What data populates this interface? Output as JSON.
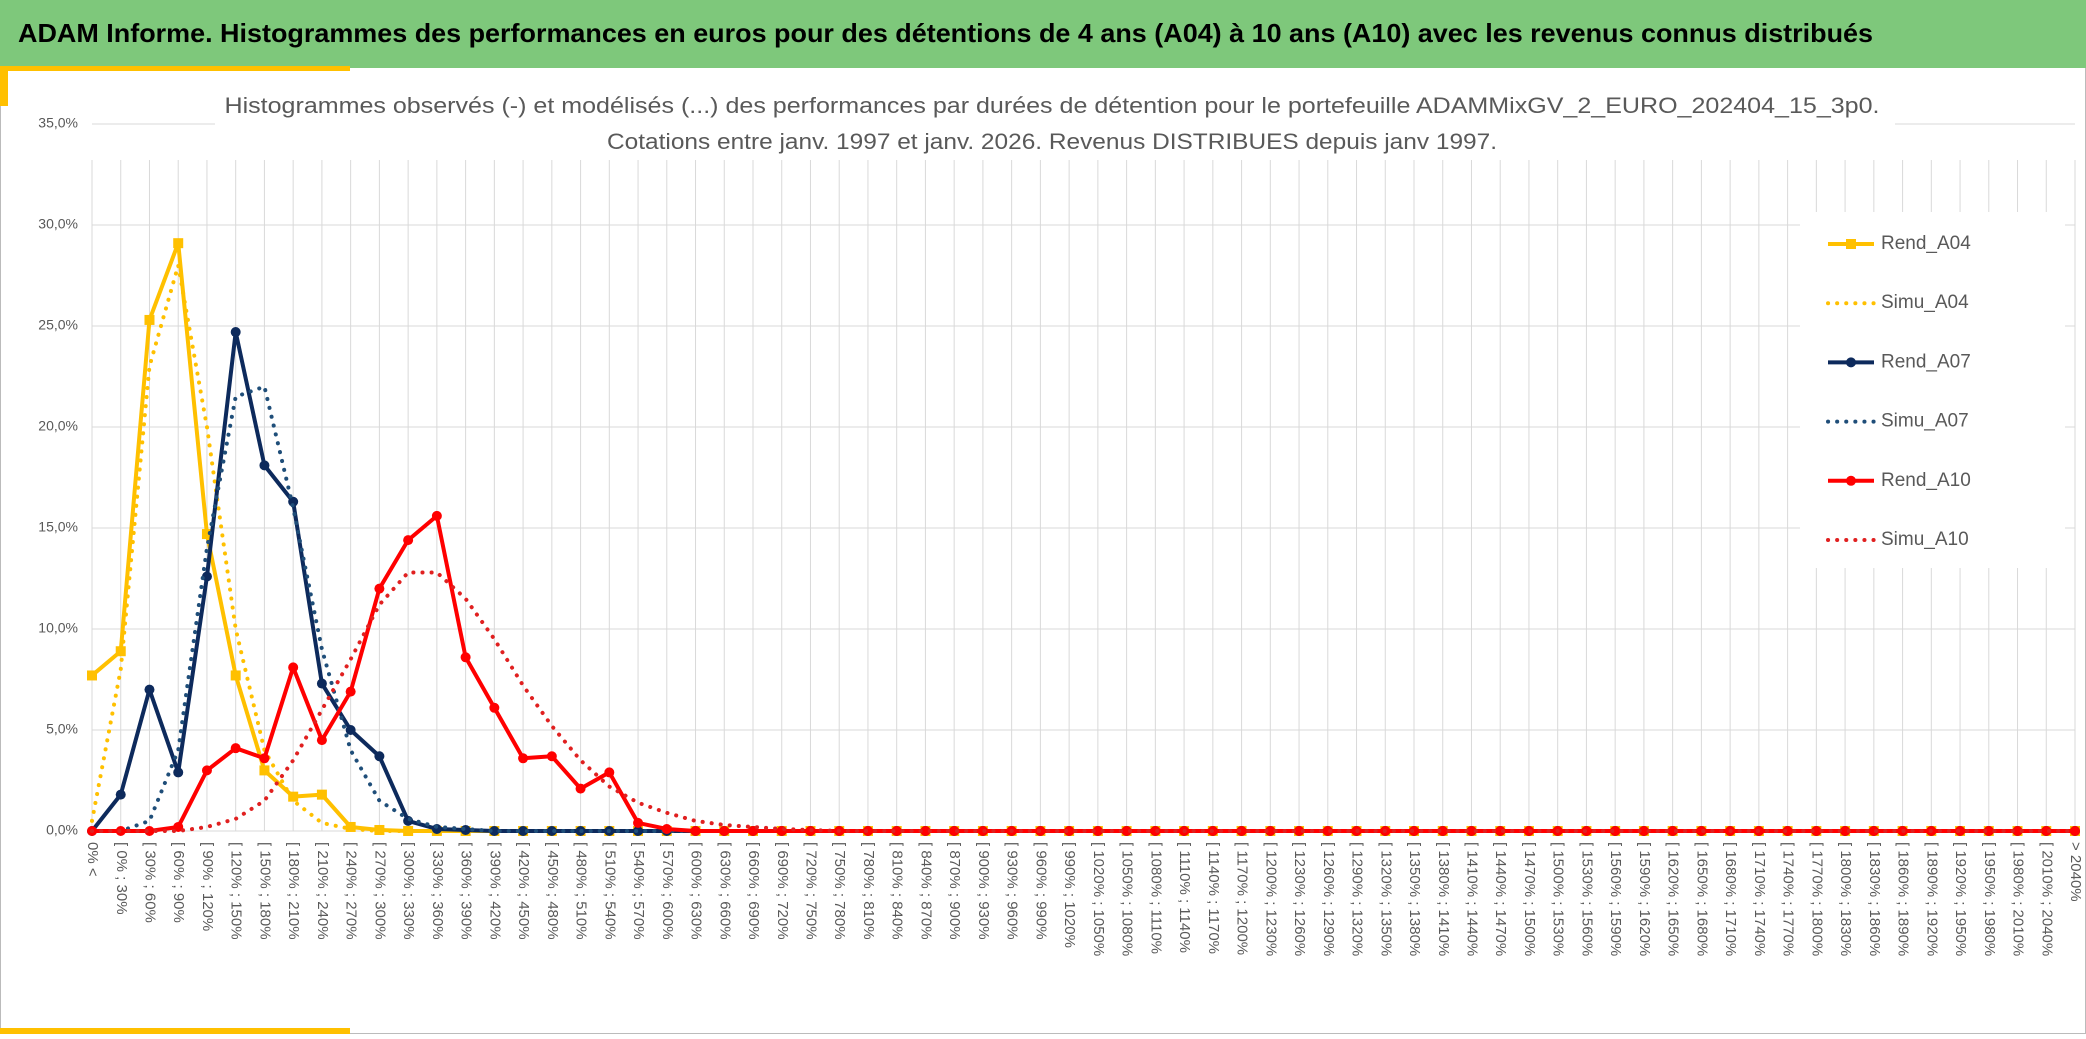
{
  "header": {
    "title": "ADAM Informe. Histogrammes des performances en euros pour des détentions de 4 ans (A04) à 10 ans (A10) avec les revenus connus distribués"
  },
  "chart_data": {
    "type": "line",
    "title": [
      "Histogrammes observés (-) et modélisés (...) des performances par durées de détention pour le portefeuille ADAMMixGV_2_EURO_202404_15_3p0.",
      "Cotations entre janv. 1997 et janv. 2026. Revenus DISTRIBUES depuis janv 1997."
    ],
    "categories": [
      "0% <",
      "[ 0% ; 30%",
      "[ 30% ; 60%",
      "[ 60% ; 90%",
      "[ 90% ; 120%",
      "[ 120% ; 150%",
      "[ 150% ; 180%",
      "[ 180% ; 210%",
      "[ 210% ; 240%",
      "[ 240% ; 270%",
      "[ 270% ; 300%",
      "[ 300% ; 330%",
      "[ 330% ; 360%",
      "[ 360% ; 390%",
      "[ 390% ; 420%",
      "[ 420% ; 450%",
      "[ 450% ; 480%",
      "[ 480% ; 510%",
      "[ 510% ; 540%",
      "[ 540% ; 570%",
      "[ 570% ; 600%",
      "[ 600% ; 630%",
      "[ 630% ; 660%",
      "[ 660% ; 690%",
      "[ 690% ; 720%",
      "[ 720% ; 750%",
      "[ 750% ; 780%",
      "[ 780% ; 810%",
      "[ 810% ; 840%",
      "[ 840% ; 870%",
      "[ 870% ; 900%",
      "[ 900% ; 930%",
      "[ 930% ; 960%",
      "[ 960% ; 990%",
      "[ 990% ; 1020%",
      "[ 1020% ; 1050%",
      "[ 1050% ; 1080%",
      "[ 1080% ; 1110%",
      "[ 1110% ; 1140%",
      "[ 1140% ; 1170%",
      "[ 1170% ; 1200%",
      "[ 1200% ; 1230%",
      "[ 1230% ; 1260%",
      "[ 1260% ; 1290%",
      "[ 1290% ; 1320%",
      "[ 1320% ; 1350%",
      "[ 1350% ; 1380%",
      "[ 1380% ; 1410%",
      "[ 1410% ; 1440%",
      "[ 1440% ; 1470%",
      "[ 1470% ; 1500%",
      "[ 1500% ; 1530%",
      "[ 1530% ; 1560%",
      "[ 1560% ; 1590%",
      "[ 1590% ; 1620%",
      "[ 1620% ; 1650%",
      "[ 1650% ; 1680%",
      "[ 1680% ; 1710%",
      "[ 1710% ; 1740%",
      "[ 1740% ; 1770%",
      "[ 1770% ; 1800%",
      "[ 1800% ; 1830%",
      "[ 1830% ; 1860%",
      "[ 1860% ; 1890%",
      "[ 1890% ; 1920%",
      "[ 1920% ; 1950%",
      "[ 1950% ; 1980%",
      "[ 1980% ; 2010%",
      "[ 2010% ; 2040%",
      "> 2040%"
    ],
    "series": [
      {
        "name": "Rend_A04",
        "color": "#ffc000",
        "line_style": "solid",
        "marker": "square",
        "values": [
          7.7,
          8.9,
          25.3,
          29.1,
          14.7,
          7.7,
          3.0,
          1.7,
          1.8,
          0.2,
          0.05,
          0,
          0,
          0,
          0,
          0,
          0,
          0,
          0,
          0,
          0,
          0,
          0,
          0,
          0,
          0,
          0,
          0,
          0,
          0,
          0,
          0,
          0,
          0,
          0,
          0,
          0,
          0,
          0,
          0,
          0,
          0,
          0,
          0,
          0,
          0,
          0,
          0,
          0,
          0,
          0,
          0,
          0,
          0,
          0,
          0,
          0,
          0,
          0,
          0,
          0,
          0,
          0,
          0,
          0,
          0,
          0,
          0,
          0,
          0
        ]
      },
      {
        "name": "Simu_A04",
        "color": "#ffc000",
        "line_style": "dotted",
        "marker": "none",
        "values": [
          0.5,
          8,
          23,
          28,
          20,
          10,
          4,
          1.5,
          0.4,
          0.1,
          0,
          0,
          0,
          0,
          0,
          0,
          0,
          0,
          0,
          0,
          0,
          0,
          0,
          0,
          0,
          0,
          0,
          0,
          0,
          0,
          0,
          0,
          0,
          0,
          0,
          0,
          0,
          0,
          0,
          0,
          0,
          0,
          0,
          0,
          0,
          0,
          0,
          0,
          0,
          0,
          0,
          0,
          0,
          0,
          0,
          0,
          0,
          0,
          0,
          0,
          0,
          0,
          0,
          0,
          0,
          0,
          0,
          0,
          0,
          0
        ]
      },
      {
        "name": "Rend_A07",
        "color": "#0d2a5c",
        "line_style": "solid",
        "marker": "circle",
        "values": [
          0,
          1.8,
          7.0,
          2.9,
          12.6,
          24.7,
          18.1,
          16.3,
          7.3,
          5.0,
          3.7,
          0.5,
          0.1,
          0.05,
          0,
          0,
          0,
          0,
          0,
          0,
          0,
          0,
          0,
          0,
          0,
          0,
          0,
          0,
          0,
          0,
          0,
          0,
          0,
          0,
          0,
          0,
          0,
          0,
          0,
          0,
          0,
          0,
          0,
          0,
          0,
          0,
          0,
          0,
          0,
          0,
          0,
          0,
          0,
          0,
          0,
          0,
          0,
          0,
          0,
          0,
          0,
          0,
          0,
          0,
          0,
          0,
          0,
          0,
          0,
          0
        ]
      },
      {
        "name": "Simu_A07",
        "color": "#1f4e79",
        "line_style": "dotted",
        "marker": "none",
        "values": [
          0,
          0,
          0.5,
          4,
          14,
          21.5,
          22,
          16,
          9,
          4,
          1.5,
          0.6,
          0.2,
          0.1,
          0,
          0,
          0,
          0,
          0,
          0,
          0,
          0,
          0,
          0,
          0,
          0,
          0,
          0,
          0,
          0,
          0,
          0,
          0,
          0,
          0,
          0,
          0,
          0,
          0,
          0,
          0,
          0,
          0,
          0,
          0,
          0,
          0,
          0,
          0,
          0,
          0,
          0,
          0,
          0,
          0,
          0,
          0,
          0,
          0,
          0,
          0,
          0,
          0,
          0,
          0,
          0,
          0,
          0,
          0,
          0
        ]
      },
      {
        "name": "Rend_A10",
        "color": "#ff0000",
        "line_style": "solid",
        "marker": "circle",
        "values": [
          0,
          0,
          0,
          0.2,
          3.0,
          4.1,
          3.6,
          8.1,
          4.5,
          6.9,
          12.0,
          14.4,
          15.6,
          8.6,
          6.1,
          3.6,
          3.7,
          2.1,
          2.9,
          0.4,
          0.1,
          0,
          0,
          0,
          0,
          0,
          0,
          0,
          0,
          0,
          0,
          0,
          0,
          0,
          0,
          0,
          0,
          0,
          0,
          0,
          0,
          0,
          0,
          0,
          0,
          0,
          0,
          0,
          0,
          0,
          0,
          0,
          0,
          0,
          0,
          0,
          0,
          0,
          0,
          0,
          0,
          0,
          0,
          0,
          0,
          0,
          0,
          0,
          0,
          0
        ]
      },
      {
        "name": "Simu_A10",
        "color": "#e02020",
        "line_style": "dotted",
        "marker": "none",
        "values": [
          0,
          0,
          0,
          0,
          0.2,
          0.6,
          1.5,
          3.5,
          6,
          8.5,
          11.2,
          12.8,
          12.8,
          11.5,
          9.5,
          7.2,
          5.2,
          3.5,
          2.2,
          1.4,
          0.9,
          0.5,
          0.3,
          0.2,
          0.1,
          0.05,
          0,
          0,
          0,
          0,
          0,
          0,
          0,
          0,
          0,
          0,
          0,
          0,
          0,
          0,
          0,
          0,
          0,
          0,
          0,
          0,
          0,
          0,
          0,
          0,
          0,
          0,
          0,
          0,
          0,
          0,
          0,
          0,
          0,
          0,
          0,
          0,
          0,
          0,
          0,
          0,
          0,
          0,
          0,
          0
        ]
      }
    ],
    "ylim": [
      0,
      35
    ],
    "yticks": [
      {
        "value": 0,
        "label": "0,0%"
      },
      {
        "value": 5,
        "label": "5,0%"
      },
      {
        "value": 10,
        "label": "10,0%"
      },
      {
        "value": 15,
        "label": "15,0%"
      },
      {
        "value": 20,
        "label": "20,0%"
      },
      {
        "value": 25,
        "label": "25,0%"
      },
      {
        "value": 30,
        "label": "30,0%"
      },
      {
        "value": 35,
        "label": "35,0%"
      }
    ],
    "grid": true,
    "legend": "right"
  }
}
